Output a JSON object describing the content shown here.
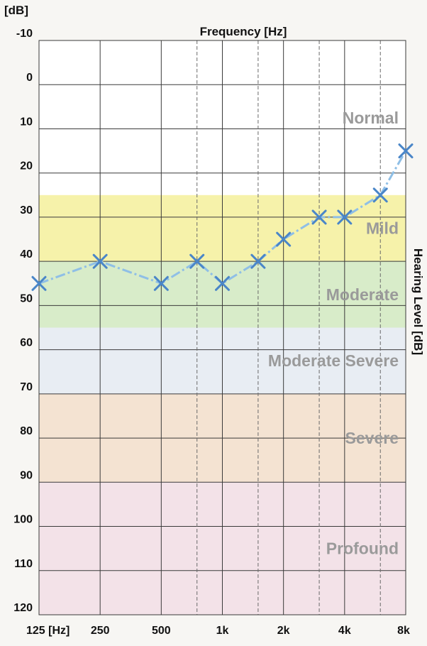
{
  "chart_data": {
    "type": "line",
    "title": "Frequency [Hz]",
    "ylabel": "Hearing Level [dB]",
    "yunit": "[dB]",
    "ylim": [
      -10,
      120
    ],
    "y_inverted": true,
    "grid": true,
    "yticks": [
      -10,
      0,
      10,
      20,
      30,
      40,
      50,
      60,
      70,
      80,
      90,
      100,
      110,
      120
    ],
    "x_scale": "log2-octave",
    "x_tick_labels": [
      "125 [Hz]",
      "250",
      "500",
      "1k",
      "2k",
      "4k",
      "8k"
    ],
    "x_tick_values": [
      125,
      250,
      500,
      1000,
      2000,
      4000,
      8000
    ],
    "x_intermediate_lines": [
      750,
      1500,
      3000,
      6000
    ],
    "bands": [
      {
        "label": "Normal",
        "from": -10,
        "to": 25,
        "color": "#ffffff"
      },
      {
        "label": "Mild",
        "from": 25,
        "to": 40,
        "color": "#f6f2aa"
      },
      {
        "label": "Moderate",
        "from": 40,
        "to": 55,
        "color": "#d8ecc9"
      },
      {
        "label": "Moderate Severe",
        "from": 55,
        "to": 70,
        "color": "#e8edf3"
      },
      {
        "label": "Severe",
        "from": 70,
        "to": 90,
        "color": "#f4e3d2"
      },
      {
        "label": "Profound",
        "from": 90,
        "to": 120,
        "color": "#f3e2e8"
      }
    ],
    "series": [
      {
        "color": "#4a86c8",
        "line_color": "#8fbfe6",
        "marker": "x",
        "x": [
          125,
          250,
          500,
          750,
          1000,
          1500,
          2000,
          3000,
          4000,
          6000,
          8000
        ],
        "values": [
          45,
          40,
          45,
          40,
          45,
          40,
          35,
          30,
          30,
          25,
          15
        ]
      }
    ]
  }
}
